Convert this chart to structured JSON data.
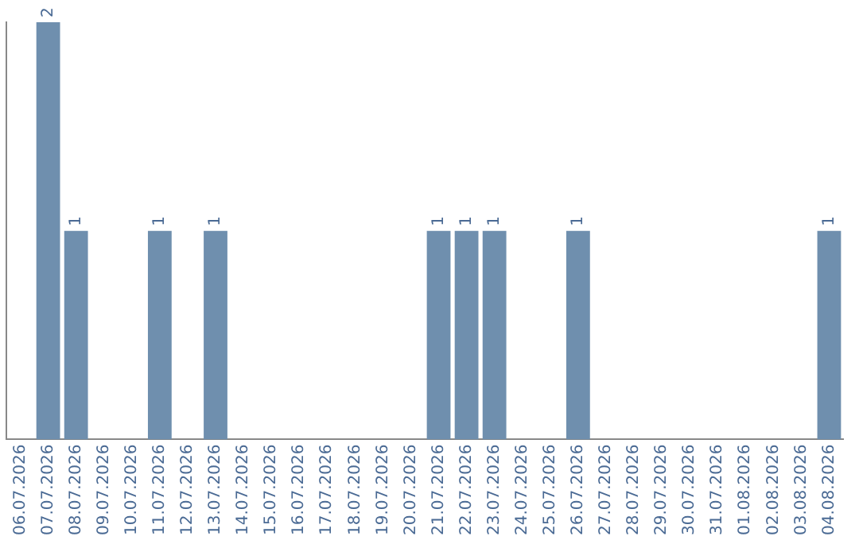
{
  "chart_data": {
    "type": "bar",
    "categories": [
      "06.07.2026",
      "07.07.2026",
      "08.07.2026",
      "09.07.2026",
      "10.07.2026",
      "11.07.2026",
      "12.07.2026",
      "13.07.2026",
      "14.07.2026",
      "15.07.2026",
      "16.07.2026",
      "17.07.2026",
      "18.07.2026",
      "19.07.2026",
      "20.07.2026",
      "21.07.2026",
      "22.07.2026",
      "23.07.2026",
      "24.07.2026",
      "25.07.2026",
      "26.07.2026",
      "27.07.2026",
      "28.07.2026",
      "29.07.2026",
      "30.07.2026",
      "31.07.2026",
      "01.08.2026",
      "02.08.2026",
      "03.08.2026",
      "04.08.2026"
    ],
    "values": [
      0,
      2,
      1,
      0,
      0,
      1,
      0,
      1,
      0,
      0,
      0,
      0,
      0,
      0,
      0,
      1,
      1,
      1,
      0,
      0,
      1,
      0,
      0,
      0,
      0,
      0,
      0,
      0,
      0,
      1
    ],
    "value_labels": [
      null,
      "2",
      "1",
      null,
      null,
      "1",
      null,
      "1",
      null,
      null,
      null,
      null,
      null,
      null,
      null,
      "1",
      "1",
      "1",
      null,
      null,
      "1",
      null,
      null,
      null,
      null,
      null,
      null,
      null,
      null,
      "1"
    ],
    "color": "#6f8fae",
    "grid": false,
    "legend": false,
    "tick_labels": "x"
  }
}
